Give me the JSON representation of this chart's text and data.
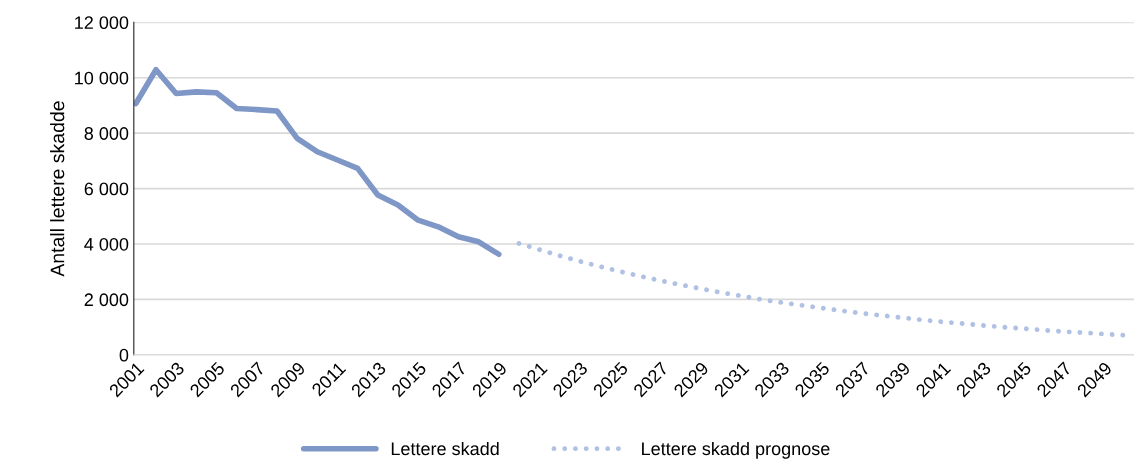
{
  "chart_data": {
    "type": "line",
    "ylabel": "Antall lettere skadde",
    "categories": [
      "2001",
      null,
      "2003",
      null,
      "2005",
      null,
      "2007",
      null,
      "2009",
      null,
      "2011",
      null,
      "2013",
      null,
      "2015",
      null,
      "2017",
      null,
      "2019",
      null,
      "2021",
      null,
      "2023",
      null,
      "2025",
      null,
      "2027",
      null,
      "2029",
      null,
      "2031",
      null,
      "2033",
      null,
      "2035",
      null,
      "2037",
      null,
      "2039",
      null,
      "2041",
      null,
      "2043",
      null,
      "2045",
      null,
      "2047",
      null,
      "2049",
      null
    ],
    "series": [
      {
        "name": "Lettere skadd",
        "color": "#7f97c6",
        "line_style": "solid",
        "values": [
          9070,
          10290,
          9430,
          9490,
          9460,
          8890,
          8850,
          8800,
          7810,
          7330,
          7030,
          6730,
          5770,
          5410,
          4860,
          4620,
          4260,
          4080,
          3630,
          null,
          null,
          null,
          null,
          null,
          null,
          null,
          null,
          null,
          null,
          null,
          null,
          null,
          null,
          null,
          null,
          null,
          null,
          null,
          null,
          null,
          null,
          null,
          null,
          null,
          null,
          null,
          null,
          null,
          null,
          null
        ]
      },
      {
        "name": "Lettere skadd prognose",
        "color": "#b0c1e4",
        "line_style": "dotted",
        "values": [
          null,
          null,
          null,
          null,
          null,
          null,
          null,
          null,
          null,
          null,
          null,
          null,
          null,
          null,
          null,
          null,
          null,
          null,
          null,
          4020,
          3800,
          3580,
          3380,
          3190,
          3010,
          2840,
          2680,
          2530,
          2390,
          2250,
          2130,
          2000,
          1890,
          1790,
          1690,
          1590,
          1500,
          1420,
          1340,
          1260,
          1190,
          1130,
          1060,
          1000,
          950,
          890,
          840,
          800,
          750,
          710
        ]
      }
    ],
    "ylim": [
      0,
      12000
    ],
    "yticks": [
      0,
      {
        "value": 2000,
        "label": "2 000"
      },
      {
        "value": 4000,
        "label": "4 000"
      },
      {
        "value": 6000,
        "label": "6 000"
      },
      {
        "value": 8000,
        "label": "8 000"
      },
      {
        "value": 10000,
        "label": "10 000"
      },
      {
        "value": 12000,
        "label": "12 000"
      }
    ],
    "grid": "y",
    "legend": "bottom",
    "marker": "none"
  }
}
